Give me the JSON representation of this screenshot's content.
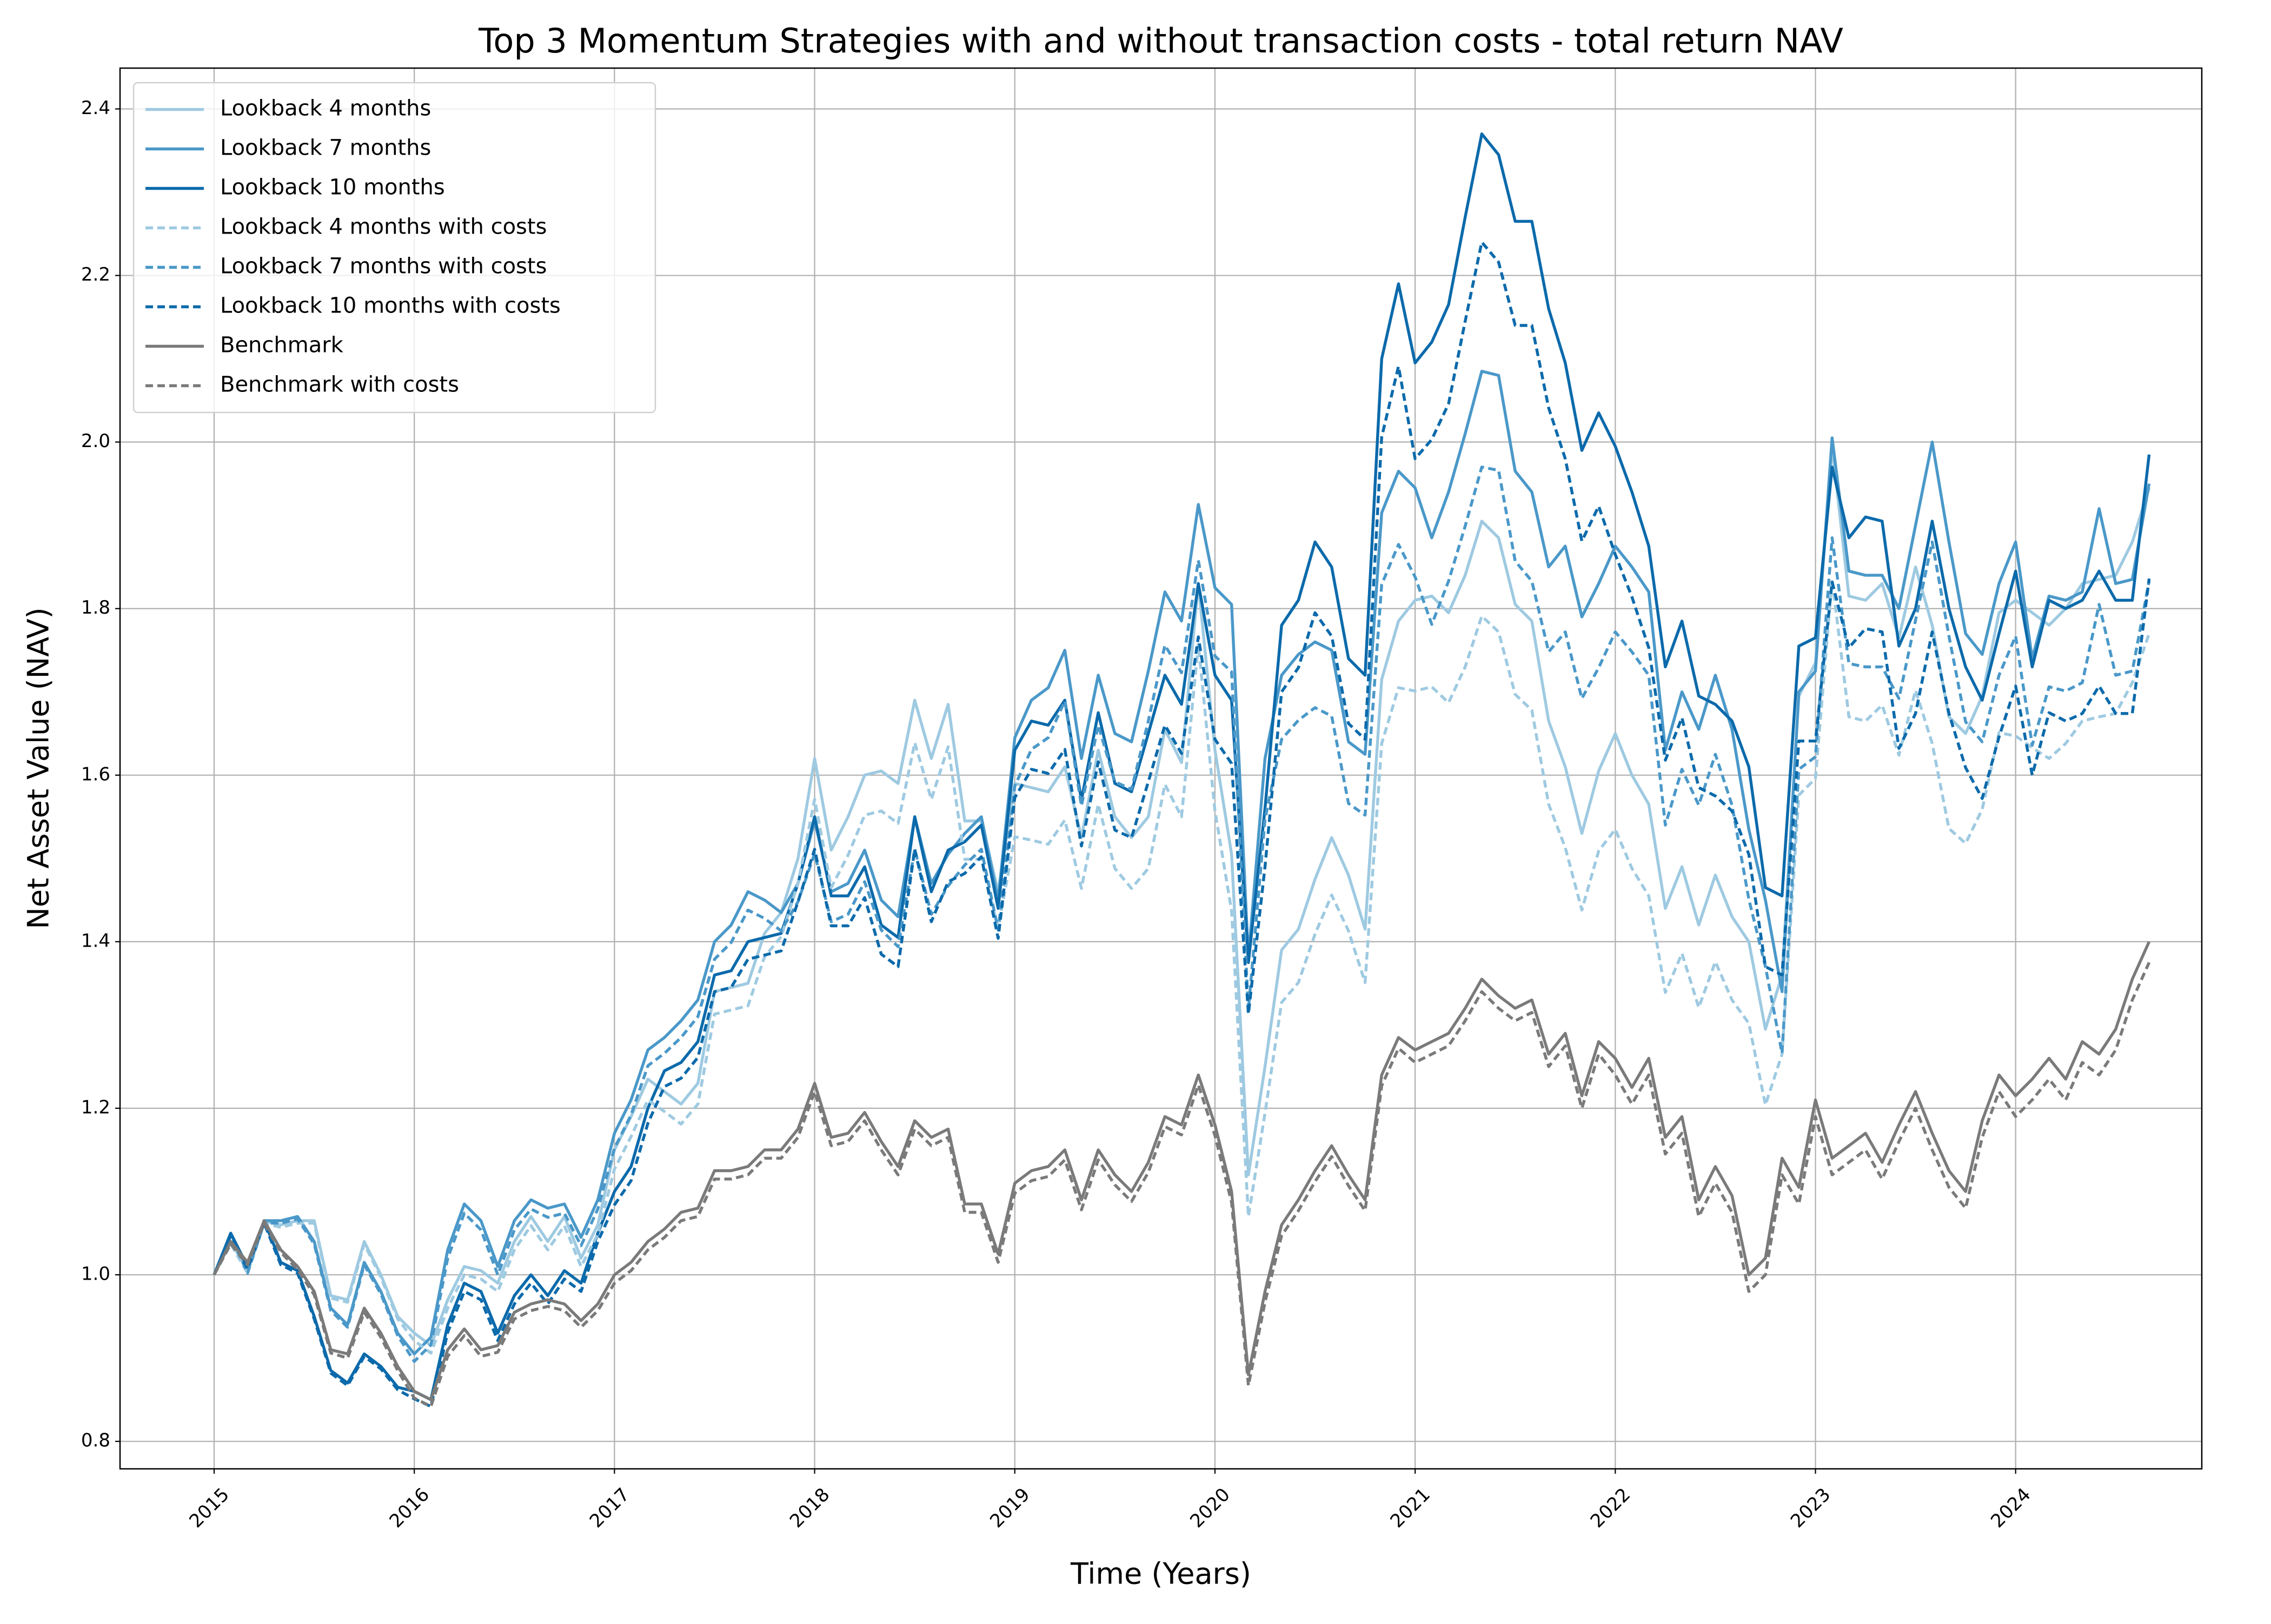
{
  "chart_data": {
    "type": "line",
    "title": "Top 3 Momentum Strategies with and without transaction costs - total return NAV",
    "x_label": "Time (Years)",
    "y_label": "Net Asset Value (NAV)",
    "grid": true,
    "legend": "upper left",
    "xlim": [
      2014.53,
      2024.93
    ],
    "ylim": [
      0.767,
      2.449
    ],
    "xticks": [
      2015,
      2016,
      2017,
      2018,
      2019,
      2020,
      2021,
      2022,
      2023,
      2024
    ],
    "yticks": [
      0.8,
      {
        "value": 1,
        "label": "1.0"
      },
      1.2,
      1.4,
      1.6,
      1.8,
      {
        "value": 2,
        "label": "2.0"
      },
      2.2,
      2.4
    ],
    "x": [
      2015,
      2015.083,
      2015.167,
      2015.25,
      2015.333,
      2015.417,
      2015.5,
      2015.583,
      2015.667,
      2015.75,
      2015.833,
      2015.917,
      2016,
      2016.083,
      2016.167,
      2016.25,
      2016.333,
      2016.417,
      2016.5,
      2016.583,
      2016.667,
      2016.75,
      2016.833,
      2016.917,
      2017,
      2017.083,
      2017.167,
      2017.25,
      2017.333,
      2017.417,
      2017.5,
      2017.583,
      2017.667,
      2017.75,
      2017.833,
      2017.917,
      2018,
      2018.083,
      2018.167,
      2018.25,
      2018.333,
      2018.417,
      2018.5,
      2018.583,
      2018.667,
      2018.75,
      2018.833,
      2018.917,
      2019,
      2019.083,
      2019.167,
      2019.25,
      2019.333,
      2019.417,
      2019.5,
      2019.583,
      2019.667,
      2019.75,
      2019.833,
      2019.917,
      2020,
      2020.083,
      2020.167,
      2020.25,
      2020.333,
      2020.417,
      2020.5,
      2020.583,
      2020.667,
      2020.75,
      2020.833,
      2020.917,
      2021,
      2021.083,
      2021.167,
      2021.25,
      2021.333,
      2021.417,
      2021.5,
      2021.583,
      2021.667,
      2021.75,
      2021.833,
      2021.917,
      2022,
      2022.083,
      2022.167,
      2022.25,
      2022.333,
      2022.417,
      2022.5,
      2022.583,
      2022.667,
      2022.75,
      2022.833,
      2022.917,
      2023,
      2023.083,
      2023.167,
      2023.25,
      2023.333,
      2023.417,
      2023.5,
      2023.583,
      2023.667,
      2023.75,
      2023.833,
      2023.917,
      2024,
      2024.083,
      2024.167,
      2024.25,
      2024.333,
      2024.417,
      2024.5,
      2024.583,
      2024.667
    ],
    "series": [
      {
        "name": "Lookback 4 months",
        "color": "#9ecae1",
        "linestyle": "solid",
        "values": [
          1.0,
          1.04,
          1.005,
          1.065,
          1.06,
          1.065,
          1.065,
          0.975,
          0.97,
          1.04,
          1.0,
          0.95,
          0.93,
          0.915,
          0.97,
          1.01,
          1.005,
          0.99,
          1.04,
          1.07,
          1.04,
          1.07,
          1.02,
          1.06,
          1.15,
          1.19,
          1.235,
          1.22,
          1.205,
          1.23,
          1.34,
          1.345,
          1.35,
          1.41,
          1.435,
          1.5,
          1.62,
          1.51,
          1.55,
          1.6,
          1.605,
          1.59,
          1.69,
          1.62,
          1.685,
          1.545,
          1.545,
          1.46,
          1.59,
          1.585,
          1.58,
          1.61,
          1.525,
          1.63,
          1.55,
          1.525,
          1.55,
          1.655,
          1.615,
          1.83,
          1.63,
          1.505,
          1.12,
          1.25,
          1.39,
          1.415,
          1.475,
          1.525,
          1.48,
          1.415,
          1.715,
          1.785,
          1.81,
          1.815,
          1.795,
          1.84,
          1.905,
          1.885,
          1.805,
          1.785,
          1.665,
          1.61,
          1.53,
          1.605,
          1.65,
          1.6,
          1.565,
          1.44,
          1.49,
          1.42,
          1.48,
          1.43,
          1.4,
          1.295,
          1.36,
          1.695,
          1.735,
          1.995,
          1.815,
          1.81,
          1.83,
          1.765,
          1.85,
          1.78,
          1.67,
          1.65,
          1.695,
          1.795,
          1.81,
          1.795,
          1.78,
          1.8,
          1.83,
          1.835,
          1.84,
          1.88,
          1.945
        ]
      },
      {
        "name": "Lookback 7 months",
        "color": "#4a98c9",
        "linestyle": "solid",
        "values": [
          1.0,
          1.05,
          1.005,
          1.065,
          1.065,
          1.07,
          1.04,
          0.96,
          0.94,
          1.015,
          0.98,
          0.93,
          0.905,
          0.925,
          1.03,
          1.085,
          1.065,
          1.01,
          1.065,
          1.09,
          1.08,
          1.085,
          1.045,
          1.09,
          1.17,
          1.21,
          1.27,
          1.285,
          1.305,
          1.33,
          1.4,
          1.42,
          1.46,
          1.45,
          1.435,
          1.47,
          1.545,
          1.46,
          1.47,
          1.51,
          1.45,
          1.43,
          1.55,
          1.47,
          1.505,
          1.53,
          1.55,
          1.45,
          1.645,
          1.69,
          1.705,
          1.75,
          1.62,
          1.72,
          1.65,
          1.64,
          1.725,
          1.82,
          1.785,
          1.925,
          1.825,
          1.805,
          1.38,
          1.62,
          1.72,
          1.745,
          1.76,
          1.75,
          1.64,
          1.625,
          1.915,
          1.965,
          1.945,
          1.885,
          1.94,
          2.01,
          2.085,
          2.08,
          1.965,
          1.94,
          1.85,
          1.875,
          1.79,
          1.83,
          1.875,
          1.85,
          1.82,
          1.63,
          1.7,
          1.655,
          1.72,
          1.655,
          1.535,
          1.45,
          1.34,
          1.7,
          1.725,
          2.005,
          1.845,
          1.84,
          1.84,
          1.8,
          1.9,
          2.0,
          1.88,
          1.77,
          1.745,
          1.83,
          1.88,
          1.74,
          1.815,
          1.81,
          1.82,
          1.92,
          1.83,
          1.835,
          1.95
        ]
      },
      {
        "name": "Lookback 10 months",
        "color": "#0b6aab",
        "linestyle": "solid",
        "values": [
          1.0,
          1.05,
          1.01,
          1.065,
          1.015,
          1.005,
          0.95,
          0.885,
          0.87,
          0.905,
          0.89,
          0.865,
          0.86,
          0.85,
          0.94,
          0.99,
          0.98,
          0.93,
          0.975,
          1.0,
          0.975,
          1.005,
          0.99,
          1.05,
          1.1,
          1.13,
          1.2,
          1.245,
          1.255,
          1.28,
          1.36,
          1.365,
          1.4,
          1.405,
          1.41,
          1.47,
          1.55,
          1.455,
          1.455,
          1.49,
          1.42,
          1.405,
          1.55,
          1.46,
          1.51,
          1.52,
          1.54,
          1.44,
          1.63,
          1.665,
          1.66,
          1.69,
          1.57,
          1.675,
          1.59,
          1.58,
          1.65,
          1.72,
          1.685,
          1.83,
          1.72,
          1.69,
          1.375,
          1.56,
          1.78,
          1.81,
          1.88,
          1.85,
          1.74,
          1.72,
          2.1,
          2.19,
          2.095,
          2.12,
          2.165,
          2.27,
          2.37,
          2.345,
          2.265,
          2.265,
          2.16,
          2.095,
          1.99,
          2.035,
          1.995,
          1.94,
          1.875,
          1.73,
          1.785,
          1.695,
          1.685,
          1.665,
          1.61,
          1.465,
          1.455,
          1.755,
          1.765,
          1.97,
          1.885,
          1.91,
          1.905,
          1.755,
          1.8,
          1.905,
          1.8,
          1.73,
          1.69,
          1.77,
          1.845,
          1.73,
          1.81,
          1.8,
          1.81,
          1.845,
          1.81,
          1.81,
          1.985
        ]
      },
      {
        "name": "Lookback 4 months with costs",
        "color": "#9ecae1",
        "linestyle": "dashed",
        "values": [
          1.0,
          1.037,
          1.002,
          1.062,
          1.057,
          1.062,
          1.062,
          0.972,
          0.967,
          1.037,
          0.997,
          0.947,
          0.921,
          0.906,
          0.96,
          1.0,
          0.995,
          0.98,
          1.03,
          1.059,
          1.03,
          1.059,
          1.01,
          1.049,
          1.127,
          1.166,
          1.21,
          1.196,
          1.181,
          1.205,
          1.313,
          1.318,
          1.323,
          1.382,
          1.406,
          1.47,
          1.571,
          1.465,
          1.504,
          1.552,
          1.557,
          1.542,
          1.639,
          1.571,
          1.634,
          1.499,
          1.499,
          1.416,
          1.526,
          1.522,
          1.517,
          1.546,
          1.464,
          1.565,
          1.488,
          1.464,
          1.488,
          1.589,
          1.55,
          1.757,
          1.557,
          1.437,
          1.07,
          1.194,
          1.327,
          1.351,
          1.409,
          1.456,
          1.413,
          1.351,
          1.638,
          1.705,
          1.701,
          1.706,
          1.687,
          1.73,
          1.791,
          1.772,
          1.697,
          1.678,
          1.565,
          1.513,
          1.438,
          1.509,
          1.535,
          1.488,
          1.455,
          1.339,
          1.386,
          1.321,
          1.376,
          1.33,
          1.302,
          1.204,
          1.265,
          1.576,
          1.596,
          1.835,
          1.67,
          1.665,
          1.684,
          1.624,
          1.702,
          1.638,
          1.536,
          1.518,
          1.559,
          1.651,
          1.647,
          1.633,
          1.62,
          1.638,
          1.665,
          1.67,
          1.674,
          1.711,
          1.77
        ]
      },
      {
        "name": "Lookback 7 months with costs",
        "color": "#4a98c9",
        "linestyle": "dashed",
        "values": [
          1.0,
          1.047,
          1.002,
          1.062,
          1.062,
          1.067,
          1.037,
          0.957,
          0.937,
          1.012,
          0.977,
          0.927,
          0.896,
          0.916,
          1.02,
          1.074,
          1.054,
          1.0,
          1.054,
          1.079,
          1.069,
          1.074,
          1.035,
          1.079,
          1.152,
          1.192,
          1.251,
          1.266,
          1.285,
          1.31,
          1.379,
          1.399,
          1.438,
          1.428,
          1.413,
          1.448,
          1.506,
          1.424,
          1.433,
          1.472,
          1.414,
          1.394,
          1.511,
          1.433,
          1.467,
          1.492,
          1.511,
          1.414,
          1.587,
          1.631,
          1.645,
          1.689,
          1.563,
          1.66,
          1.592,
          1.583,
          1.665,
          1.756,
          1.723,
          1.858,
          1.743,
          1.724,
          1.318,
          1.547,
          1.643,
          1.666,
          1.681,
          1.671,
          1.566,
          1.552,
          1.829,
          1.877,
          1.838,
          1.781,
          1.833,
          1.899,
          1.97,
          1.966,
          1.857,
          1.833,
          1.748,
          1.772,
          1.692,
          1.729,
          1.772,
          1.748,
          1.72,
          1.54,
          1.607,
          1.564,
          1.625,
          1.564,
          1.451,
          1.37,
          1.266,
          1.607,
          1.622,
          1.885,
          1.734,
          1.73,
          1.73,
          1.692,
          1.786,
          1.88,
          1.767,
          1.664,
          1.64,
          1.72,
          1.767,
          1.636,
          1.706,
          1.701,
          1.711,
          1.805,
          1.72,
          1.725,
          1.833
        ]
      },
      {
        "name": "Lookback 10 months with costs",
        "color": "#0b6aab",
        "linestyle": "dashed",
        "values": [
          1.0,
          1.047,
          1.007,
          1.062,
          1.012,
          1.002,
          0.947,
          0.882,
          0.867,
          0.902,
          0.887,
          0.862,
          0.851,
          0.842,
          0.931,
          0.98,
          0.97,
          0.921,
          0.965,
          0.99,
          0.965,
          0.995,
          0.98,
          1.04,
          1.084,
          1.113,
          1.182,
          1.226,
          1.236,
          1.261,
          1.34,
          1.345,
          1.379,
          1.384,
          1.389,
          1.448,
          1.511,
          1.419,
          1.419,
          1.453,
          1.385,
          1.37,
          1.511,
          1.424,
          1.472,
          1.482,
          1.502,
          1.404,
          1.573,
          1.607,
          1.602,
          1.631,
          1.515,
          1.616,
          1.534,
          1.525,
          1.592,
          1.66,
          1.626,
          1.766,
          1.643,
          1.614,
          1.313,
          1.49,
          1.7,
          1.729,
          1.795,
          1.767,
          1.662,
          1.643,
          2.006,
          2.091,
          1.98,
          2.003,
          2.046,
          2.145,
          2.24,
          2.216,
          2.14,
          2.14,
          2.041,
          1.98,
          1.881,
          1.923,
          1.865,
          1.814,
          1.753,
          1.618,
          1.669,
          1.585,
          1.575,
          1.557,
          1.505,
          1.37,
          1.36,
          1.641,
          1.641,
          1.832,
          1.753,
          1.776,
          1.772,
          1.632,
          1.674,
          1.772,
          1.674,
          1.609,
          1.572,
          1.646,
          1.707,
          1.6,
          1.675,
          1.665,
          1.674,
          1.707,
          1.674,
          1.674,
          1.836
        ]
      },
      {
        "name": "Benchmark",
        "color": "#7a7a7a",
        "linestyle": "solid",
        "values": [
          1.0,
          1.04,
          1.015,
          1.065,
          1.03,
          1.01,
          0.98,
          0.91,
          0.905,
          0.96,
          0.93,
          0.89,
          0.86,
          0.85,
          0.91,
          0.935,
          0.91,
          0.915,
          0.955,
          0.965,
          0.97,
          0.965,
          0.945,
          0.965,
          1.0,
          1.015,
          1.04,
          1.055,
          1.075,
          1.08,
          1.125,
          1.125,
          1.13,
          1.15,
          1.15,
          1.175,
          1.23,
          1.165,
          1.17,
          1.195,
          1.16,
          1.13,
          1.185,
          1.165,
          1.175,
          1.085,
          1.085,
          1.025,
          1.11,
          1.125,
          1.13,
          1.15,
          1.09,
          1.15,
          1.12,
          1.1,
          1.135,
          1.19,
          1.18,
          1.24,
          1.18,
          1.1,
          0.88,
          0.98,
          1.06,
          1.09,
          1.125,
          1.155,
          1.12,
          1.09,
          1.24,
          1.285,
          1.27,
          1.28,
          1.29,
          1.32,
          1.355,
          1.335,
          1.32,
          1.33,
          1.265,
          1.29,
          1.215,
          1.28,
          1.26,
          1.225,
          1.26,
          1.165,
          1.19,
          1.09,
          1.13,
          1.095,
          1.0,
          1.02,
          1.14,
          1.105,
          1.21,
          1.14,
          1.155,
          1.17,
          1.135,
          1.18,
          1.22,
          1.17,
          1.125,
          1.1,
          1.185,
          1.24,
          1.215,
          1.235,
          1.26,
          1.235,
          1.28,
          1.265,
          1.295,
          1.355,
          1.4
        ]
      },
      {
        "name": "Benchmark with costs",
        "color": "#7a7a7a",
        "linestyle": "dashed",
        "values": [
          1.0,
          1.037,
          1.012,
          1.062,
          1.027,
          1.006,
          0.976,
          0.906,
          0.9,
          0.955,
          0.925,
          0.885,
          0.852,
          0.842,
          0.902,
          0.927,
          0.902,
          0.907,
          0.947,
          0.957,
          0.962,
          0.957,
          0.937,
          0.957,
          0.99,
          1.005,
          1.03,
          1.045,
          1.065,
          1.07,
          1.115,
          1.115,
          1.12,
          1.14,
          1.14,
          1.165,
          1.22,
          1.155,
          1.16,
          1.185,
          1.15,
          1.12,
          1.175,
          1.155,
          1.165,
          1.075,
          1.075,
          1.015,
          1.098,
          1.113,
          1.118,
          1.138,
          1.078,
          1.138,
          1.108,
          1.088,
          1.123,
          1.178,
          1.168,
          1.228,
          1.167,
          1.087,
          0.867,
          0.967,
          1.047,
          1.077,
          1.112,
          1.142,
          1.107,
          1.077,
          1.227,
          1.272,
          1.255,
          1.265,
          1.275,
          1.305,
          1.34,
          1.32,
          1.305,
          1.315,
          1.25,
          1.275,
          1.2,
          1.265,
          1.24,
          1.205,
          1.24,
          1.145,
          1.17,
          1.07,
          1.11,
          1.075,
          0.98,
          1.0,
          1.12,
          1.085,
          1.19,
          1.12,
          1.135,
          1.15,
          1.115,
          1.16,
          1.2,
          1.15,
          1.105,
          1.08,
          1.165,
          1.22,
          1.19,
          1.21,
          1.235,
          1.21,
          1.255,
          1.24,
          1.27,
          1.33,
          1.375
        ]
      }
    ]
  }
}
